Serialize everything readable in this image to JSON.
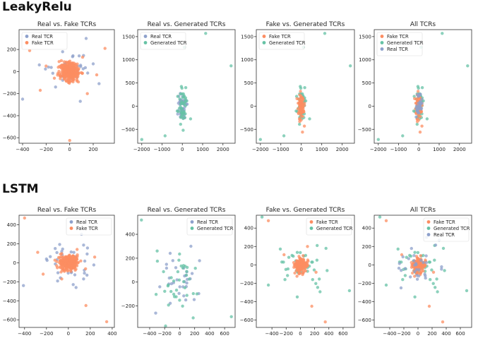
{
  "sections": [
    {
      "title": "LeakyRelu"
    },
    {
      "title": "LSTM"
    }
  ],
  "colors": {
    "real": "#8da0cb",
    "fake": "#fc8d62",
    "generated": "#66c2a5"
  },
  "chart_data": [
    {
      "type": "scatter",
      "title": "Real vs. Fake TCRs",
      "xlim": [
        -430,
        380
      ],
      "ylim": [
        -650,
        380
      ],
      "xticks": [
        -400,
        -200,
        0,
        200
      ],
      "yticks": [
        -600,
        -400,
        -200,
        0,
        200
      ],
      "legend": [
        "Real TCR",
        "Fake TCR"
      ],
      "legend_position": "top-left",
      "series": [
        {
          "name": "Real TCR",
          "kind": "real",
          "cloud": {
            "cx": 0,
            "cy": 0,
            "sx": 90,
            "sy": 80,
            "n": 35,
            "seed": 11
          },
          "outliers": [
            [
              -400,
              -250
            ],
            [
              140,
              300
            ],
            [
              -180,
              40
            ],
            [
              250,
              -110
            ],
            [
              -120,
              -140
            ],
            [
              200,
              70
            ],
            [
              90,
              -270
            ],
            [
              -60,
              180
            ]
          ]
        },
        {
          "name": "Fake TCR",
          "kind": "fake",
          "cloud": {
            "cx": 0,
            "cy": 0,
            "sx": 40,
            "sy": 40,
            "n": 260,
            "seed": 12
          },
          "outliers": [
            [
              0,
              -625
            ],
            [
              -340,
              190
            ],
            [
              300,
              210
            ],
            [
              -250,
              -170
            ],
            [
              150,
              -200
            ],
            [
              -90,
              90
            ],
            [
              110,
              130
            ],
            [
              -200,
              50
            ],
            [
              230,
              -30
            ],
            [
              -130,
              -60
            ]
          ]
        }
      ]
    },
    {
      "type": "scatter",
      "title": "Real vs. Generated TCRs",
      "xlim": [
        -2200,
        2600
      ],
      "ylim": [
        -800,
        1650
      ],
      "xticks": [
        -2000,
        -1000,
        0,
        1000,
        2000
      ],
      "yticks": [
        -500,
        0,
        500,
        1000,
        1500
      ],
      "legend": [
        "Real TCR",
        "Generated TCR"
      ],
      "legend_position": "top-left",
      "series": [
        {
          "name": "Real TCR",
          "kind": "real",
          "cloud": {
            "cx": 0,
            "cy": 0,
            "sx": 110,
            "sy": 160,
            "n": 40,
            "seed": 21
          },
          "outliers": []
        },
        {
          "name": "Generated TCR",
          "kind": "generated",
          "cloud": {
            "cx": 0,
            "cy": 0,
            "sx": 130,
            "sy": 170,
            "n": 45,
            "seed": 22
          },
          "outliers": [
            [
              1150,
              1570
            ],
            [
              100,
              1270
            ],
            [
              2400,
              870
            ],
            [
              -2000,
              -720
            ],
            [
              -850,
              -640
            ],
            [
              40,
              -520
            ]
          ]
        }
      ]
    },
    {
      "type": "scatter",
      "title": "Fake vs. Generated TCRs",
      "xlim": [
        -2200,
        2600
      ],
      "ylim": [
        -800,
        1650
      ],
      "xticks": [
        -2000,
        -1000,
        0,
        1000,
        2000
      ],
      "yticks": [
        -500,
        0,
        500,
        1000,
        1500
      ],
      "legend": [
        "Fake TCR",
        "Generated TCR"
      ],
      "legend_position": "top-left",
      "series": [
        {
          "name": "Generated TCR",
          "kind": "generated",
          "cloud": {
            "cx": 0,
            "cy": 0,
            "sx": 130,
            "sy": 170,
            "n": 45,
            "seed": 22
          },
          "outliers": [
            [
              1150,
              1570
            ],
            [
              100,
              1270
            ],
            [
              2400,
              870
            ],
            [
              -2000,
              -720
            ],
            [
              -850,
              -640
            ]
          ]
        },
        {
          "name": "Fake TCR",
          "kind": "fake",
          "cloud": {
            "cx": 0,
            "cy": 0,
            "sx": 70,
            "sy": 110,
            "n": 90,
            "seed": 31
          },
          "outliers": [
            [
              60,
              -560
            ],
            [
              -40,
              320
            ],
            [
              150,
              -430
            ]
          ]
        }
      ]
    },
    {
      "type": "scatter",
      "title": "All TCRs",
      "xlim": [
        -2200,
        2600
      ],
      "ylim": [
        -800,
        1650
      ],
      "xticks": [
        -2000,
        -1000,
        0,
        1000,
        2000
      ],
      "yticks": [
        -500,
        0,
        500,
        1000,
        1500
      ],
      "legend": [
        "Fake TCR",
        "Generated TCR",
        "Real TCR"
      ],
      "legend_position": "top-left",
      "series": [
        {
          "name": "Generated TCR",
          "kind": "generated",
          "cloud": {
            "cx": 0,
            "cy": 0,
            "sx": 130,
            "sy": 170,
            "n": 45,
            "seed": 22
          },
          "outliers": [
            [
              1150,
              1570
            ],
            [
              100,
              1270
            ],
            [
              2400,
              870
            ],
            [
              -2000,
              -720
            ],
            [
              -800,
              -640
            ]
          ]
        },
        {
          "name": "Fake TCR",
          "kind": "fake",
          "cloud": {
            "cx": 0,
            "cy": 0,
            "sx": 70,
            "sy": 110,
            "n": 90,
            "seed": 31
          },
          "outliers": [
            [
              60,
              -560
            ],
            [
              -40,
              320
            ],
            [
              150,
              -430
            ]
          ]
        },
        {
          "name": "Real TCR",
          "kind": "real",
          "cloud": {
            "cx": 0,
            "cy": 0,
            "sx": 90,
            "sy": 150,
            "n": 30,
            "seed": 41
          },
          "outliers": []
        }
      ]
    },
    {
      "type": "scatter",
      "title": "Real vs. Fake TCRs",
      "xlim": [
        -450,
        420
      ],
      "ylim": [
        -680,
        500
      ],
      "xticks": [
        -400,
        -200,
        0,
        200,
        400
      ],
      "yticks": [
        -600,
        -400,
        -200,
        0,
        200,
        400
      ],
      "legend": [
        "Real TCR",
        "Fake TCR"
      ],
      "legend_position": "top-right",
      "series": [
        {
          "name": "Real TCR",
          "kind": "real",
          "cloud": {
            "cx": 0,
            "cy": 0,
            "sx": 90,
            "sy": 90,
            "n": 35,
            "seed": 51
          },
          "outliers": [
            [
              -410,
              -240
            ],
            [
              120,
              300
            ],
            [
              -200,
              40
            ],
            [
              170,
              -130
            ],
            [
              70,
              -260
            ],
            [
              -120,
              150
            ]
          ]
        },
        {
          "name": "Fake TCR",
          "kind": "fake",
          "cloud": {
            "cx": 0,
            "cy": 0,
            "sx": 40,
            "sy": 40,
            "n": 260,
            "seed": 52
          },
          "outliers": [
            [
              -400,
              470
            ],
            [
              160,
              -450
            ],
            [
              350,
              -620
            ],
            [
              -230,
              -120
            ],
            [
              -280,
              110
            ],
            [
              240,
              60
            ],
            [
              -60,
              -170
            ],
            [
              80,
              140
            ]
          ]
        }
      ]
    },
    {
      "type": "scatter",
      "title": "Real vs. Generated TCRs",
      "xlim": [
        -560,
        740
      ],
      "ylim": [
        -380,
        560
      ],
      "xticks": [
        -400,
        -200,
        0,
        200,
        400,
        600
      ],
      "yticks": [
        -200,
        0,
        200,
        400
      ],
      "legend": [
        "Real TCR",
        "Generated TCR"
      ],
      "legend_position": "top-right",
      "series": [
        {
          "name": "Real TCR",
          "kind": "real",
          "cloud": {
            "cx": 0,
            "cy": 0,
            "sx": 150,
            "sy": 120,
            "n": 30,
            "seed": 61
          },
          "outliers": [
            [
              150,
              300
            ],
            [
              -320,
              -260
            ]
          ]
        },
        {
          "name": "Generated TCR",
          "kind": "generated",
          "cloud": {
            "cx": 0,
            "cy": 0,
            "sx": 150,
            "sy": 125,
            "n": 35,
            "seed": 62
          },
          "outliers": [
            [
              -510,
              520
            ],
            [
              690,
              -290
            ],
            [
              -300,
              260
            ],
            [
              180,
              -300
            ]
          ]
        }
      ]
    },
    {
      "type": "scatter",
      "title": "Fake vs. Generated TCRs",
      "xlim": [
        -620,
        760
      ],
      "ylim": [
        -680,
        540
      ],
      "xticks": [
        -400,
        -200,
        0,
        200,
        400,
        600
      ],
      "yticks": [
        -600,
        -400,
        -200,
        0,
        200,
        400
      ],
      "legend": [
        "Fake TCR",
        "Generated TCR"
      ],
      "legend_position": "top-right",
      "series": [
        {
          "name": "Generated TCR",
          "kind": "generated",
          "cloud": {
            "cx": 0,
            "cy": 0,
            "sx": 170,
            "sy": 160,
            "n": 40,
            "seed": 71
          },
          "outliers": [
            [
              -540,
              520
            ],
            [
              690,
              -280
            ],
            [
              -450,
              -220
            ],
            [
              360,
              180
            ]
          ]
        },
        {
          "name": "Fake TCR",
          "kind": "fake",
          "cloud": {
            "cx": 0,
            "cy": 0,
            "sx": 45,
            "sy": 45,
            "n": 160,
            "seed": 72
          },
          "outliers": [
            [
              -450,
              480
            ],
            [
              160,
              -450
            ],
            [
              350,
              -620
            ],
            [
              -230,
              110
            ],
            [
              220,
              -80
            ],
            [
              100,
              200
            ]
          ]
        }
      ]
    },
    {
      "type": "scatter",
      "title": "All TCRs",
      "xlim": [
        -620,
        760
      ],
      "ylim": [
        -680,
        540
      ],
      "xticks": [
        -400,
        -200,
        0,
        200,
        400,
        600
      ],
      "yticks": [
        -600,
        -400,
        -200,
        0,
        200,
        400
      ],
      "legend": [
        "Fake TCR",
        "Generated TCR",
        "Real TCR"
      ],
      "legend_position": "top-right",
      "series": [
        {
          "name": "Generated TCR",
          "kind": "generated",
          "cloud": {
            "cx": 0,
            "cy": 0,
            "sx": 170,
            "sy": 160,
            "n": 40,
            "seed": 71
          },
          "outliers": [
            [
              -540,
              520
            ],
            [
              690,
              -280
            ],
            [
              -450,
              -220
            ],
            [
              360,
              180
            ]
          ]
        },
        {
          "name": "Fake TCR",
          "kind": "fake",
          "cloud": {
            "cx": 0,
            "cy": 0,
            "sx": 45,
            "sy": 45,
            "n": 160,
            "seed": 72
          },
          "outliers": [
            [
              -450,
              480
            ],
            [
              160,
              -450
            ],
            [
              350,
              -620
            ],
            [
              -230,
              110
            ],
            [
              220,
              -80
            ]
          ]
        },
        {
          "name": "Real TCR",
          "kind": "real",
          "cloud": {
            "cx": 0,
            "cy": 0,
            "sx": 150,
            "sy": 120,
            "n": 30,
            "seed": 81
          },
          "outliers": [
            [
              120,
              300
            ],
            [
              -240,
              -250
            ]
          ]
        }
      ]
    }
  ]
}
